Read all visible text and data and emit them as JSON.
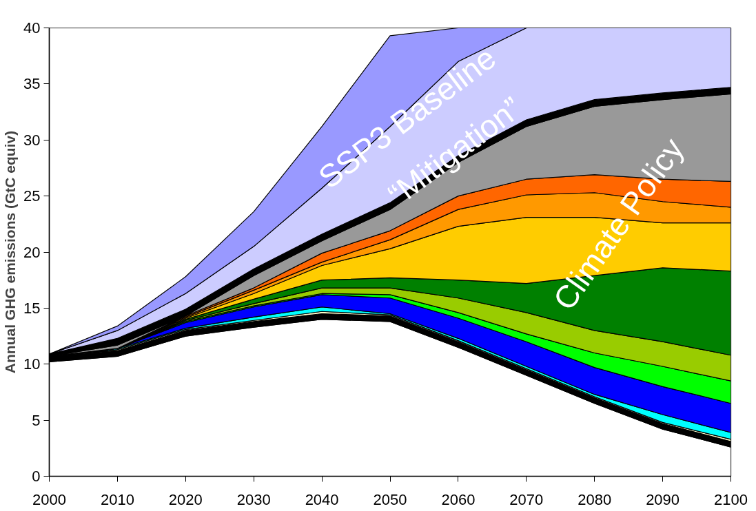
{
  "chart_data": {
    "type": "area",
    "stacked": true,
    "ylabel": "Annual GHG emissions (GtC equiv)",
    "x": [
      2000,
      2010,
      2020,
      2030,
      2040,
      2050,
      2060,
      2070,
      2080,
      2090,
      2100
    ],
    "xlim": [
      2000,
      2100
    ],
    "xticks": [
      2000,
      2010,
      2020,
      2030,
      2040,
      2050,
      2060,
      2070,
      2080,
      2090,
      2100
    ],
    "ylim": [
      0,
      40
    ],
    "yticks": [
      0,
      5,
      10,
      15,
      20,
      25,
      30,
      35,
      40
    ],
    "grid": false,
    "annotations": [
      "SSP3 Baseline",
      "“Mitigation”",
      "Climate Policy"
    ],
    "series": [
      {
        "color": "#ffffff",
        "values": [
          10.2,
          10.7,
          12.5,
          13.3,
          14.0,
          13.8,
          11.5,
          9.0,
          6.5,
          4.2,
          2.6
        ]
      },
      {
        "color": "#000000",
        "values": [
          0.5,
          0.5,
          0.5,
          0.5,
          0.5,
          0.5,
          0.5,
          0.5,
          0.5,
          0.5,
          0.5
        ]
      },
      {
        "color": "#ffffcc",
        "values": [
          0,
          0.1,
          0.1,
          0.1,
          0.2,
          0.1,
          0.1,
          0.1,
          0.1,
          0.1,
          0.2
        ]
      },
      {
        "color": "#00ffff",
        "values": [
          0,
          0.1,
          0.1,
          0.3,
          0.4,
          0.1,
          0.2,
          0.2,
          0.2,
          0.7,
          0.6
        ]
      },
      {
        "color": "#0000ff",
        "values": [
          0,
          0,
          0.5,
          0.9,
          1.1,
          1.4,
          1.8,
          2.2,
          2.4,
          2.5,
          2.6
        ]
      },
      {
        "color": "#00ff00",
        "values": [
          0,
          0,
          0.1,
          0.1,
          0.1,
          0.3,
          0.5,
          0.7,
          1.3,
          1.8,
          2.0
        ]
      },
      {
        "color": "#99cc00",
        "values": [
          0,
          0,
          0.1,
          0.2,
          0.5,
          0.6,
          1.3,
          1.9,
          2.0,
          2.2,
          2.3
        ]
      },
      {
        "color": "#008000",
        "values": [
          0,
          0,
          0.1,
          0.4,
          0.7,
          0.9,
          1.6,
          2.6,
          4.9,
          6.6,
          7.5
        ]
      },
      {
        "color": "#ffcc00",
        "values": [
          0,
          0,
          0.1,
          0.5,
          1.3,
          2.6,
          4.8,
          5.9,
          5.2,
          4.0,
          4.3
        ]
      },
      {
        "color": "#ff9900",
        "values": [
          0,
          0,
          0.1,
          0.3,
          0.3,
          0.8,
          1.5,
          2.0,
          2.2,
          1.9,
          1.4
        ]
      },
      {
        "color": "#ff6600",
        "values": [
          0,
          0,
          0.1,
          0.2,
          0.8,
          0.8,
          1.2,
          1.4,
          1.6,
          2.0,
          2.3
        ]
      },
      {
        "color": "#999999",
        "values": [
          0,
          0.3,
          0,
          1.1,
          1.1,
          1.9,
          3.0,
          4.7,
          6.1,
          7.1,
          7.8
        ]
      },
      {
        "color": "#000000",
        "values": [
          0.2,
          0.6,
          0.6,
          0.6,
          0.6,
          0.6,
          0.6,
          0.6,
          0.6,
          0.6,
          0.6
        ]
      },
      {
        "color": "#ccccff",
        "values": [
          0,
          0.7,
          1.4,
          2.0,
          4.1,
          6.8,
          8.4,
          8.2,
          6.4,
          5.8,
          5.3
        ]
      },
      {
        "color": "#9999ff",
        "values": [
          0,
          0.4,
          1.5,
          3.1,
          5.5,
          8.1,
          3.0,
          0,
          null,
          null,
          null
        ]
      }
    ]
  }
}
